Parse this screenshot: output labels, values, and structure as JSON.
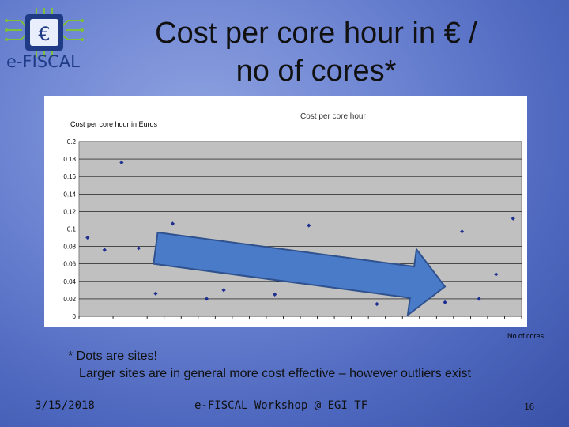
{
  "logo": {
    "symbol": "€",
    "name": "e-FISCAL"
  },
  "title": {
    "line1": "Cost per core hour in €  /",
    "line2": "no of cores*"
  },
  "chart_data": {
    "type": "scatter",
    "title": "Cost per core hour",
    "ylabel": "Cost per core hour in  Euros",
    "xlabel": "No of cores",
    "ylim": [
      0,
      0.2
    ],
    "yticks": [
      "0",
      "0.02",
      "0.04",
      "0.06",
      "0.08",
      "0.1",
      "0.12",
      "0.14",
      "0.16",
      "0.18",
      "0.2"
    ],
    "grid": true,
    "x_slots": 26,
    "points": [
      {
        "x": 1,
        "y": 0.09
      },
      {
        "x": 2,
        "y": 0.076
      },
      {
        "x": 3,
        "y": 0.176
      },
      {
        "x": 4,
        "y": 0.078
      },
      {
        "x": 5,
        "y": 0.026
      },
      {
        "x": 6,
        "y": 0.106
      },
      {
        "x": 8,
        "y": 0.02
      },
      {
        "x": 9,
        "y": 0.03
      },
      {
        "x": 12,
        "y": 0.025
      },
      {
        "x": 14,
        "y": 0.104
      },
      {
        "x": 18,
        "y": 0.014
      },
      {
        "x": 22,
        "y": 0.016
      },
      {
        "x": 23,
        "y": 0.097
      },
      {
        "x": 24,
        "y": 0.02
      },
      {
        "x": 25,
        "y": 0.048
      },
      {
        "x": 26,
        "y": 0.112
      }
    ],
    "trend_arrow": {
      "from": [
        5,
        0.078
      ],
      "to": [
        22,
        0.034
      ]
    }
  },
  "footnote": {
    "line1": "* Dots are sites!",
    "line2": "Larger sites are in general more cost effective – however outliers exist"
  },
  "footer": {
    "date": "3/15/2018",
    "event": "e-FISCAL Workshop @ EGI TF",
    "page": "16"
  }
}
